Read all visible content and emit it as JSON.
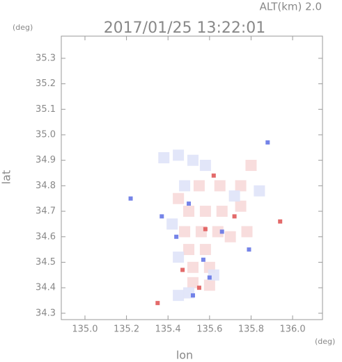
{
  "chart_data": {
    "type": "scatter",
    "title": "2017/01/25 13:22:01",
    "subtitle": "ALT(km) 2.0",
    "y_unit": "(deg)",
    "x_unit": "(deg)",
    "xlabel": "lon",
    "ylabel": "lat",
    "xlim": [
      134.886,
      136.144
    ],
    "ylim": [
      34.275,
      35.387
    ],
    "xticks": [
      {
        "value": 135,
        "label": "135.0"
      },
      135.2,
      135.4,
      135.6,
      135.8,
      {
        "value": 136,
        "label": "136.0"
      }
    ],
    "yticks": [
      34.3,
      34.4,
      34.5,
      34.6,
      34.7,
      34.8,
      34.9,
      {
        "value": 35,
        "label": "35.0"
      },
      35.1,
      35.2,
      35.3
    ],
    "series": [
      {
        "color": "#f7d9d9",
        "x": [
          135.55,
          135.65,
          135.75,
          135.8,
          135.75,
          135.5,
          135.58,
          135.66,
          135.48,
          135.56,
          135.64,
          135.5,
          135.58,
          135.52,
          135.6,
          135.52,
          135.6,
          135.7,
          135.45,
          135.78
        ],
        "y": [
          34.8,
          34.8,
          34.8,
          34.88,
          34.72,
          34.7,
          34.7,
          34.7,
          34.62,
          34.62,
          34.62,
          34.55,
          34.55,
          34.48,
          34.48,
          34.42,
          34.41,
          34.6,
          34.75,
          34.62
        ]
      },
      {
        "color": "#dfe3f8",
        "x": [
          135.38,
          135.45,
          135.52,
          135.58,
          135.48,
          135.42,
          135.45,
          135.5,
          135.45,
          135.62,
          135.72,
          135.84
        ],
        "y": [
          34.91,
          34.92,
          34.9,
          34.88,
          34.8,
          34.65,
          34.52,
          34.38,
          34.37,
          34.45,
          34.76,
          34.78
        ]
      },
      {
        "color": "#e05a5a",
        "x": [
          135.35,
          135.94,
          135.47,
          135.62,
          135.58,
          135.72,
          135.55
        ],
        "y": [
          34.34,
          34.66,
          34.47,
          34.84,
          34.63,
          34.68,
          34.4
        ]
      },
      {
        "color": "#6677e6",
        "x": [
          135.44,
          135.52,
          135.6,
          135.37,
          135.5,
          135.66,
          135.57,
          135.88,
          135.79,
          135.22
        ],
        "y": [
          34.6,
          34.37,
          34.44,
          34.68,
          34.73,
          34.62,
          34.51,
          34.97,
          34.55,
          34.75
        ]
      }
    ]
  }
}
